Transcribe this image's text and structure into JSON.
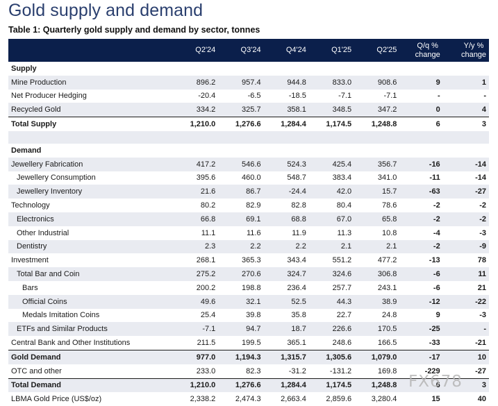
{
  "title": "Gold supply and demand",
  "subtitle": "Table 1: Quarterly gold supply and demand by sector, tonnes",
  "columns": [
    "Q2'24",
    "Q3'24",
    "Q4'24",
    "Q1'25",
    "Q2'25",
    "Q/q % change",
    "Y/y % change"
  ],
  "rows": [
    {
      "label": "Supply",
      "kind": "section",
      "values": []
    },
    {
      "label": "Mine Production",
      "shade": true,
      "values": [
        "896.2",
        "957.4",
        "944.8",
        "833.0",
        "908.6",
        "9",
        "1"
      ]
    },
    {
      "label": "Net Producer Hedging",
      "values": [
        "-20.4",
        "-6.5",
        "-18.5",
        "-7.1",
        "-7.1",
        "-",
        "-"
      ]
    },
    {
      "label": "Recycled Gold",
      "shade": true,
      "values": [
        "334.2",
        "325.7",
        "358.1",
        "348.5",
        "347.2",
        "0",
        "4"
      ]
    },
    {
      "label": "Total Supply",
      "bold": true,
      "total": true,
      "values": [
        "1,210.0",
        "1,276.6",
        "1,284.4",
        "1,174.5",
        "1,248.8",
        "6",
        "3"
      ]
    },
    {
      "label": "",
      "kind": "spacer",
      "values": []
    },
    {
      "label": "Demand",
      "kind": "section",
      "values": []
    },
    {
      "label": "Jewellery Fabrication",
      "shade": true,
      "values": [
        "417.2",
        "546.6",
        "524.3",
        "425.4",
        "356.7",
        "-16",
        "-14"
      ]
    },
    {
      "label": "Jewellery Consumption",
      "indent": 1,
      "values": [
        "395.6",
        "460.0",
        "548.7",
        "383.4",
        "341.0",
        "-11",
        "-14"
      ]
    },
    {
      "label": "Jewellery Inventory",
      "indent": 1,
      "shade": true,
      "values": [
        "21.6",
        "86.7",
        "-24.4",
        "42.0",
        "15.7",
        "-63",
        "-27"
      ]
    },
    {
      "label": "Technology",
      "values": [
        "80.2",
        "82.9",
        "82.8",
        "80.4",
        "78.6",
        "-2",
        "-2"
      ]
    },
    {
      "label": "Electronics",
      "indent": 1,
      "shade": true,
      "values": [
        "66.8",
        "69.1",
        "68.8",
        "67.0",
        "65.8",
        "-2",
        "-2"
      ]
    },
    {
      "label": "Other Industrial",
      "indent": 1,
      "values": [
        "11.1",
        "11.6",
        "11.9",
        "11.3",
        "10.8",
        "-4",
        "-3"
      ]
    },
    {
      "label": "Dentistry",
      "indent": 1,
      "shade": true,
      "values": [
        "2.3",
        "2.2",
        "2.2",
        "2.1",
        "2.1",
        "-2",
        "-9"
      ]
    },
    {
      "label": "Investment",
      "values": [
        "268.1",
        "365.3",
        "343.4",
        "551.2",
        "477.2",
        "-13",
        "78"
      ]
    },
    {
      "label": "Total Bar and Coin",
      "indent": 1,
      "shade": true,
      "values": [
        "275.2",
        "270.6",
        "324.7",
        "324.6",
        "306.8",
        "-6",
        "11"
      ]
    },
    {
      "label": "Bars",
      "indent": 2,
      "values": [
        "200.2",
        "198.8",
        "236.4",
        "257.7",
        "243.1",
        "-6",
        "21"
      ]
    },
    {
      "label": "Official Coins",
      "indent": 2,
      "shade": true,
      "values": [
        "49.6",
        "32.1",
        "52.5",
        "44.3",
        "38.9",
        "-12",
        "-22"
      ]
    },
    {
      "label": "Medals Imitation Coins",
      "indent": 2,
      "values": [
        "25.4",
        "39.8",
        "35.8",
        "22.7",
        "24.8",
        "9",
        "-3"
      ]
    },
    {
      "label": "ETFs and Similar Products",
      "indent": 1,
      "shade": true,
      "values": [
        "-7.1",
        "94.7",
        "18.7",
        "226.6",
        "170.5",
        "-25",
        "-"
      ]
    },
    {
      "label": "Central Bank and Other Institutions",
      "values": [
        "211.5",
        "199.5",
        "365.1",
        "248.6",
        "166.5",
        "-33",
        "-21"
      ]
    },
    {
      "label": "Gold Demand",
      "bold": true,
      "shade": true,
      "total": true,
      "values": [
        "977.0",
        "1,194.3",
        "1,315.7",
        "1,305.6",
        "1,079.0",
        "-17",
        "10"
      ]
    },
    {
      "label": "OTC and other",
      "values": [
        "233.0",
        "82.3",
        "-31.2",
        "-131.2",
        "169.8",
        "-229",
        "-27"
      ]
    },
    {
      "label": "Total Demand",
      "bold": true,
      "shade": true,
      "total": true,
      "values": [
        "1,210.0",
        "1,276.6",
        "1,284.4",
        "1,174.5",
        "1,248.8",
        "6",
        "3"
      ]
    },
    {
      "label": "LBMA Gold Price (US$/oz)",
      "values": [
        "2,338.2",
        "2,474.3",
        "2,663.4",
        "2,859.6",
        "3,280.4",
        "15",
        "40"
      ]
    }
  ],
  "watermark": "FX678",
  "colors": {
    "header_bg": "#0b1f4b",
    "title": "#2a3f6e",
    "shade": "#e9ebf1"
  }
}
